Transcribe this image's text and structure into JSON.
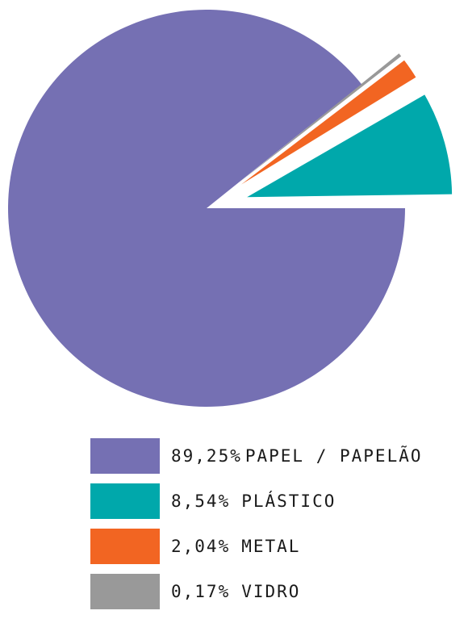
{
  "chart_data": {
    "type": "pie",
    "title": "",
    "slices": [
      {
        "label": "PAPEL / PAPELÃO",
        "percent_label": "89,25%",
        "value": 89.25,
        "color": "#7570b3",
        "exploded": false
      },
      {
        "label": "PLÁSTICO",
        "percent_label": "8,54%",
        "value": 8.54,
        "color": "#00a8ab",
        "exploded": true
      },
      {
        "label": "METAL",
        "percent_label": "2,04%",
        "value": 2.04,
        "color": "#f26522",
        "exploded": true
      },
      {
        "label": "VIDRO",
        "percent_label": "0,17%",
        "value": 0.17,
        "color": "#999999",
        "exploded": true
      }
    ],
    "legend_position": "bottom-right"
  }
}
